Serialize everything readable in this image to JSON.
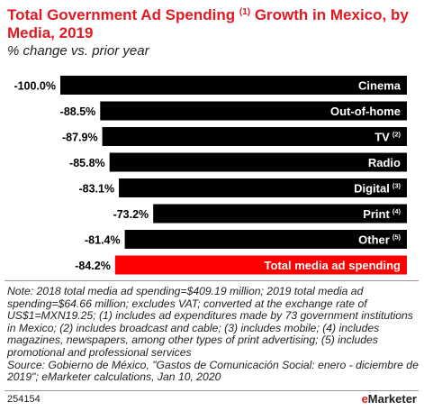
{
  "header": {
    "title_main": "Total Government Ad Spending",
    "title_sup": "(1)",
    "title_rest": "Growth in Mexico, by Media, 2019",
    "subtitle": "% change vs. prior year"
  },
  "chart_data": {
    "type": "bar",
    "orientation": "horizontal",
    "title": "Total Government Ad Spending (1) Growth in Mexico, by Media, 2019",
    "subtitle": "% change vs. prior year",
    "categories": [
      {
        "label": "Cinema",
        "sup": ""
      },
      {
        "label": "Out-of-home",
        "sup": ""
      },
      {
        "label": "TV",
        "sup": "(2)"
      },
      {
        "label": "Radio",
        "sup": ""
      },
      {
        "label": "Digital",
        "sup": "(3)"
      },
      {
        "label": "Print",
        "sup": "(4)"
      },
      {
        "label": "Other",
        "sup": "(5)"
      },
      {
        "label": "Total media ad spending",
        "sup": ""
      }
    ],
    "values": [
      -100.0,
      -88.5,
      -87.9,
      -85.8,
      -83.1,
      -73.2,
      -81.4,
      -84.2
    ],
    "value_labels": [
      "-100.0%",
      "-88.5%",
      "-87.9%",
      "-85.8%",
      "-83.1%",
      "-73.2%",
      "-81.4%",
      "-84.2%"
    ],
    "colors": [
      "#000000",
      "#000000",
      "#000000",
      "#000000",
      "#000000",
      "#000000",
      "#000000",
      "#ff0000"
    ],
    "xlim": [
      -100,
      0
    ]
  },
  "notes": {
    "text": "Note: 2018 total media ad spending=$409.19 million; 2019 total media ad spending=$64.66 million; excludes VAT; converted at the exchange rate of US$1=MXN19.25; (1) includes ad expenditures made by 73 government institutions in Mexico; (2) includes broadcast and cable; (3) includes mobile; (4) includes magazines, newspapers, among other types of print advertising; (5) includes promotional and professional services",
    "source": "Source: Gobierno de México, \"Gastos de Comunicación Social: enero - diciembre de 2019\"; eMarketer calculations, Jan 10, 2020"
  },
  "footer": {
    "id": "254154",
    "brand_prefix": "e",
    "brand_rest": "Marketer"
  }
}
